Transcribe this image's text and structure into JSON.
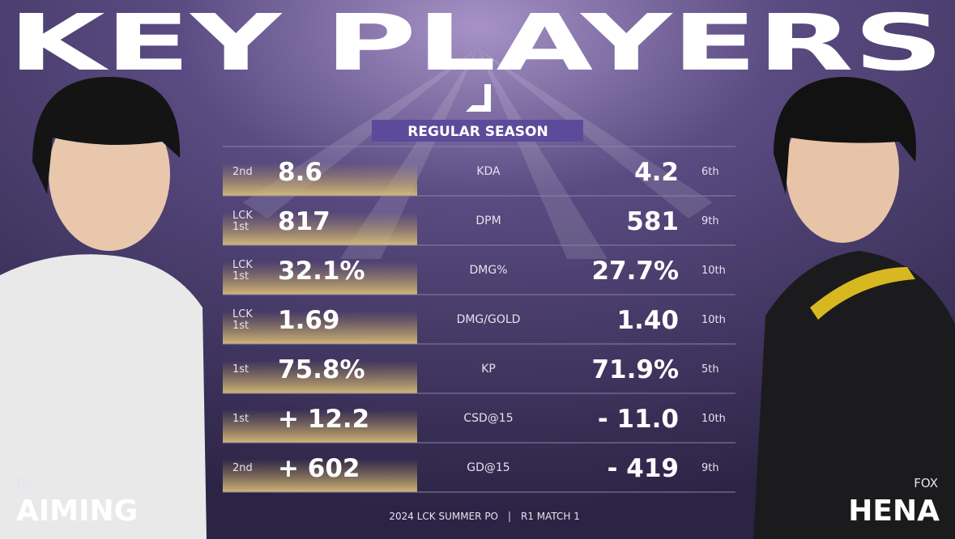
{
  "title": "KEY PLAYERS",
  "section": "REGULAR SEASON",
  "left_player": {
    "team": "DK",
    "name": "AIMING"
  },
  "right_player": {
    "team": "FOX",
    "name": "HENA"
  },
  "rows": [
    {
      "left_rank": "2nd",
      "left_value": "8.6",
      "stat": "KDA",
      "right_value": "4.2",
      "right_rank": "6th"
    },
    {
      "left_rank": "LCK\n1st",
      "left_value": "817",
      "stat": "DPM",
      "right_value": "581",
      "right_rank": "9th"
    },
    {
      "left_rank": "LCK\n1st",
      "left_value": "32.1%",
      "stat": "DMG%",
      "right_value": "27.7%",
      "right_rank": "10th"
    },
    {
      "left_rank": "LCK\n1st",
      "left_value": "1.69",
      "stat": "DMG/GOLD",
      "right_value": "1.40",
      "right_rank": "10th"
    },
    {
      "left_rank": "1st",
      "left_value": "75.8%",
      "stat": "KP",
      "right_value": "71.9%",
      "right_rank": "5th"
    },
    {
      "left_rank": "1st",
      "left_value": "+ 12.2",
      "stat": "CSD@15",
      "right_value": "- 11.0",
      "right_rank": "10th"
    },
    {
      "left_rank": "2nd",
      "left_value": "+ 602",
      "stat": "GD@15",
      "right_value": "- 419",
      "right_rank": "9th"
    }
  ],
  "footer": [
    "2024 LCK SUMMER PO",
    "R1 MATCH 1"
  ]
}
